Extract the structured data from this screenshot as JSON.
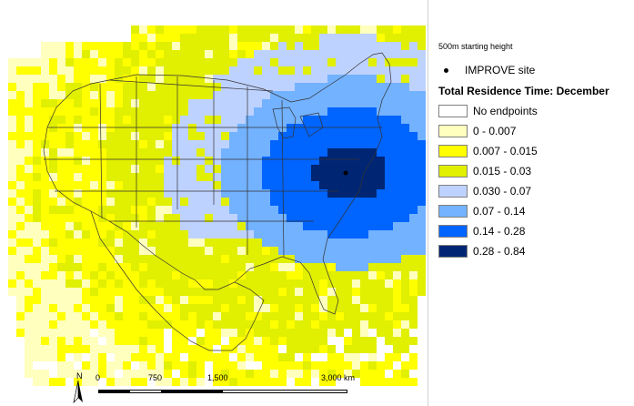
{
  "legend": {
    "starting_height": "500m starting height",
    "site_label": "IMPROVE site",
    "title": "Total Residence Time: December",
    "classes": [
      {
        "label": "No endpoints",
        "color": "#ffffff"
      },
      {
        "label": "0 - 0.007",
        "color": "#ffffbe"
      },
      {
        "label": "0.007 - 0.015",
        "color": "#ffff00"
      },
      {
        "label": "0.015 - 0.03",
        "color": "#e1ef00"
      },
      {
        "label": "0.030 - 0.07",
        "color": "#bed2ff"
      },
      {
        "label": "0.07 - 0.14",
        "color": "#73b2ff"
      },
      {
        "label": "0.14 - 0.28",
        "color": "#0064ff"
      },
      {
        "label": "0.28 - 0.84",
        "color": "#002673"
      }
    ]
  },
  "scale": {
    "north_label": "N",
    "ticks": [
      "0",
      "750",
      "1,500",
      "3,000 km"
    ]
  },
  "map": {
    "grid_lines": "#000000",
    "site_marker": "IMPROVE site (eastern Maryland/Delaware region)"
  }
}
